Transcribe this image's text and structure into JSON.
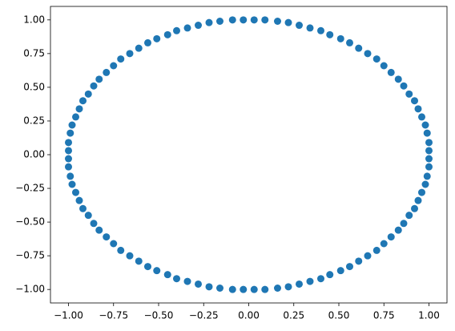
{
  "chart_data": {
    "type": "scatter",
    "color": "#1f77b4",
    "x": [
      1,
      1,
      0.99,
      0.98,
      0.96,
      0.94,
      0.92,
      0.89,
      0.86,
      0.83,
      0.79,
      0.75,
      0.71,
      0.66,
      0.61,
      0.56,
      0.51,
      0.45,
      0.4,
      0.34,
      0.28,
      0.22,
      0.16,
      0.09,
      0.03,
      -0.03,
      -0.09,
      -0.16,
      -0.22,
      -0.28,
      -0.34,
      -0.4,
      -0.45,
      -0.51,
      -0.56,
      -0.61,
      -0.66,
      -0.71,
      -0.75,
      -0.79,
      -0.83,
      -0.86,
      -0.89,
      -0.92,
      -0.94,
      -0.96,
      -0.98,
      -0.99,
      -1,
      -1,
      -1,
      -1,
      -0.99,
      -0.98,
      -0.96,
      -0.94,
      -0.92,
      -0.89,
      -0.86,
      -0.83,
      -0.79,
      -0.75,
      -0.71,
      -0.66,
      -0.61,
      -0.56,
      -0.51,
      -0.45,
      -0.4,
      -0.34,
      -0.28,
      -0.22,
      -0.16,
      -0.09,
      -0.03,
      0.03,
      0.09,
      0.16,
      0.22,
      0.28,
      0.34,
      0.4,
      0.45,
      0.51,
      0.56,
      0.61,
      0.66,
      0.71,
      0.75,
      0.79,
      0.83,
      0.86,
      0.89,
      0.92,
      0.94,
      0.96,
      0.98,
      0.99,
      1,
      1
    ],
    "values": [
      0.03,
      0.09,
      0.16,
      0.22,
      0.28,
      0.34,
      0.4,
      0.45,
      0.51,
      0.56,
      0.61,
      0.66,
      0.71,
      0.75,
      0.79,
      0.83,
      0.86,
      0.89,
      0.92,
      0.94,
      0.96,
      0.98,
      0.99,
      1,
      1,
      1,
      1,
      0.99,
      0.98,
      0.96,
      0.94,
      0.92,
      0.89,
      0.86,
      0.83,
      0.79,
      0.75,
      0.71,
      0.66,
      0.61,
      0.56,
      0.51,
      0.45,
      0.4,
      0.34,
      0.28,
      0.22,
      0.16,
      0.09,
      0.03,
      -0.03,
      -0.09,
      -0.16,
      -0.22,
      -0.28,
      -0.34,
      -0.4,
      -0.45,
      -0.51,
      -0.56,
      -0.61,
      -0.66,
      -0.71,
      -0.75,
      -0.79,
      -0.83,
      -0.86,
      -0.89,
      -0.92,
      -0.94,
      -0.96,
      -0.98,
      -0.99,
      -1,
      -1,
      -1,
      -1,
      -0.99,
      -0.98,
      -0.96,
      -0.94,
      -0.92,
      -0.89,
      -0.86,
      -0.83,
      -0.79,
      -0.75,
      -0.71,
      -0.66,
      -0.61,
      -0.56,
      -0.51,
      -0.45,
      -0.4,
      -0.34,
      -0.28,
      -0.22,
      -0.16,
      -0.09,
      -0.03
    ],
    "xlim": [
      -1.1,
      1.1
    ],
    "ylim": [
      -1.1,
      1.1
    ],
    "xticks": [
      {
        "value": -1,
        "label": "−1.00"
      },
      {
        "value": -0.75,
        "label": "−0.75"
      },
      {
        "value": -0.5,
        "label": "−0.50"
      },
      {
        "value": -0.25,
        "label": "−0.25"
      },
      {
        "value": 0,
        "label": "0.00"
      },
      {
        "value": 0.25,
        "label": "0.25"
      },
      {
        "value": 0.5,
        "label": "0.50"
      },
      {
        "value": 0.75,
        "label": "0.75"
      },
      {
        "value": 1,
        "label": "1.00"
      }
    ],
    "yticks": [
      {
        "value": -1,
        "label": "−1.00"
      },
      {
        "value": -0.75,
        "label": "−0.75"
      },
      {
        "value": -0.5,
        "label": "−0.50"
      },
      {
        "value": -0.25,
        "label": "−0.25"
      },
      {
        "value": 0,
        "label": "0.00"
      },
      {
        "value": 0.25,
        "label": "0.25"
      },
      {
        "value": 0.5,
        "label": "0.50"
      },
      {
        "value": 0.75,
        "label": "0.75"
      },
      {
        "value": 1,
        "label": "1.00"
      }
    ],
    "grid": false
  }
}
